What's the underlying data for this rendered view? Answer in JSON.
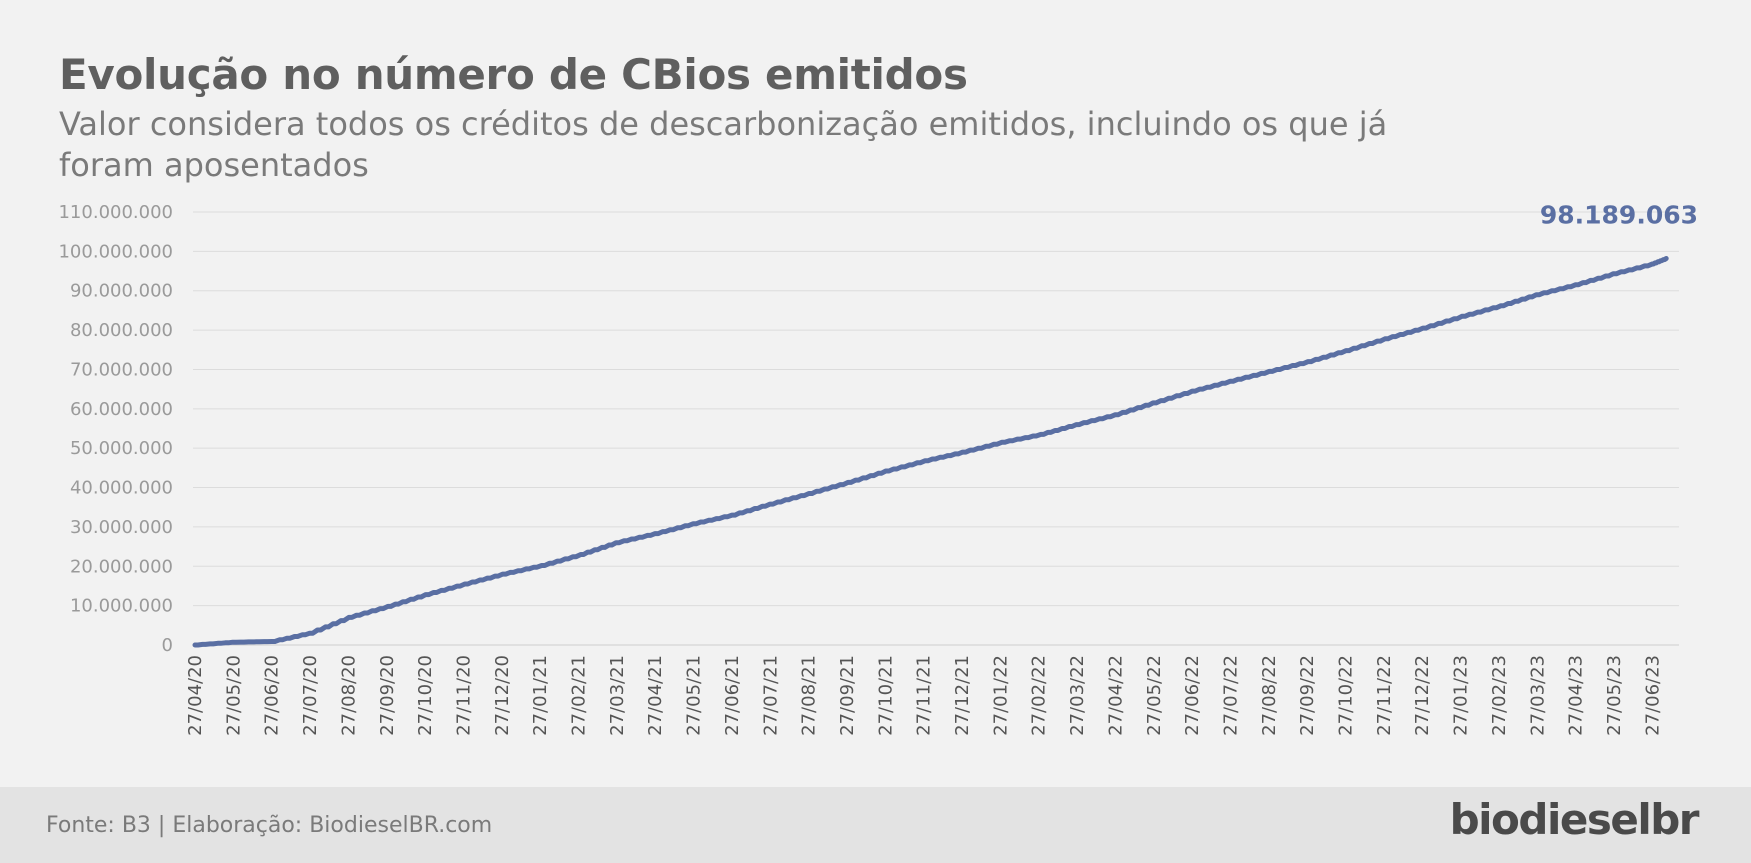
{
  "header": {
    "title": "Evolução no número de CBios emitidos",
    "subtitle": "Valor considera todos os créditos de descarbonização emitidos, incluindo os que já foram aposentados"
  },
  "footer": {
    "source": "Fonte: B3 | Elaboração: BiodieselBR.com",
    "logo": "biodieselbr"
  },
  "colors": {
    "line": "#5a6fa3",
    "grid": "#dcdcdc",
    "background": "#f2f2f2",
    "footer_background": "#e3e3e3"
  },
  "chart_data": {
    "type": "line",
    "title": "Evolução no número de CBios emitidos",
    "xlabel": "",
    "ylabel": "",
    "ylim": [
      0,
      110000000
    ],
    "grid": true,
    "y_ticks": [
      "0",
      "10.000.000",
      "20.000.000",
      "30.000.000",
      "40.000.000",
      "50.000.000",
      "60.000.000",
      "70.000.000",
      "80.000.000",
      "90.000.000",
      "100.000.000",
      "110.000.000"
    ],
    "x_ticks": [
      "27/04/20",
      "27/05/20",
      "27/06/20",
      "27/07/20",
      "27/08/20",
      "27/09/20",
      "27/10/20",
      "27/11/20",
      "27/12/20",
      "27/01/21",
      "27/02/21",
      "27/03/21",
      "27/04/21",
      "27/05/21",
      "27/06/21",
      "27/07/21",
      "27/08/21",
      "27/09/21",
      "27/10/21",
      "27/11/21",
      "27/12/21",
      "27/01/22",
      "27/02/22",
      "27/03/22",
      "27/04/22",
      "27/05/22",
      "27/06/22",
      "27/07/22",
      "27/08/22",
      "27/09/22",
      "27/10/22",
      "27/11/22",
      "27/12/22",
      "27/01/23",
      "27/02/23",
      "27/03/23",
      "27/04/23",
      "27/05/23",
      "27/06/23"
    ],
    "series": [
      {
        "x": [
          "27/04/20",
          "27/05/20",
          "27/06/20",
          "27/07/20",
          "27/08/20",
          "27/09/20",
          "27/10/20",
          "27/11/20",
          "27/12/20",
          "27/01/21",
          "27/02/21",
          "27/03/21",
          "27/04/21",
          "27/05/21",
          "27/06/21",
          "27/07/21",
          "27/08/21",
          "27/09/21",
          "27/10/21",
          "27/11/21",
          "27/12/21",
          "27/01/22",
          "27/02/22",
          "27/03/22",
          "27/04/22",
          "27/05/22",
          "27/06/22",
          "27/07/22",
          "27/08/22",
          "27/09/22",
          "27/10/22",
          "27/11/22",
          "27/12/22",
          "27/01/23",
          "27/02/23",
          "27/03/23",
          "27/04/23",
          "27/05/23",
          "27/06/23",
          "08/07/23"
        ],
        "values": [
          0,
          700000,
          900000,
          3000000,
          7000000,
          9800000,
          12800000,
          15500000,
          18000000,
          20200000,
          23000000,
          26000000,
          28300000,
          30800000,
          33000000,
          35800000,
          38500000,
          41300000,
          44200000,
          46800000,
          49000000,
          51500000,
          53500000,
          56000000,
          58500000,
          61500000,
          64500000,
          67000000,
          69500000,
          72000000,
          74800000,
          77800000,
          80500000,
          83500000,
          86200000,
          89000000,
          91500000,
          94300000,
          96800000,
          98189063
        ]
      }
    ],
    "annotations": [
      {
        "label": "98.189.063",
        "x": "08/07/23",
        "y": 98189063
      }
    ]
  }
}
